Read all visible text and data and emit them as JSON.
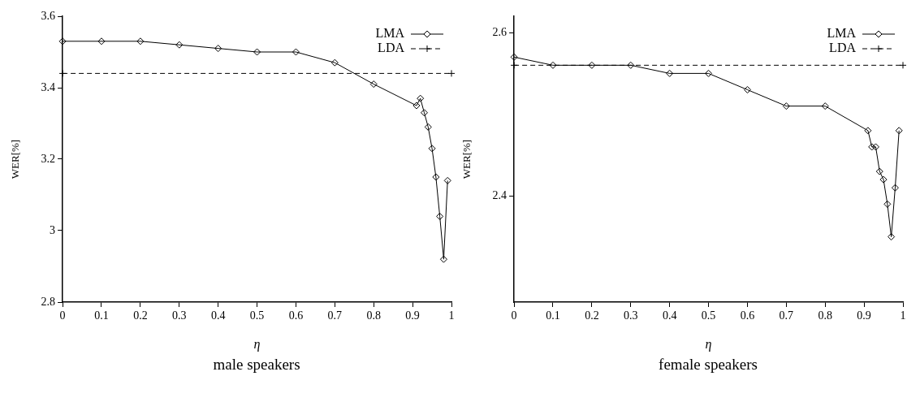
{
  "chart_data": [
    {
      "type": "line",
      "xlabel": "η",
      "ylabel": "WER[%]",
      "annotations": [
        "male speakers"
      ],
      "xlim": [
        0,
        1
      ],
      "xticks": [
        0,
        0.1,
        0.2,
        0.3,
        0.4,
        0.5,
        0.6,
        0.7,
        0.8,
        0.9,
        1
      ],
      "ylim": [
        2.8,
        3.6
      ],
      "yticks": [
        2.8,
        3,
        3.2,
        3.4,
        3.6
      ],
      "grid": false,
      "legend": "top right",
      "series": [
        {
          "name": "LMA",
          "color": "#000000",
          "marker": "diamond",
          "line_style": "solid",
          "x": [
            0,
            0.1,
            0.2,
            0.3,
            0.4,
            0.5,
            0.6,
            0.7,
            0.8,
            0.91,
            0.92,
            0.93,
            0.94,
            0.95,
            0.96,
            0.97,
            0.98,
            0.99
          ],
          "values": [
            3.53,
            3.53,
            3.53,
            3.52,
            3.51,
            3.5,
            3.5,
            3.47,
            3.41,
            3.35,
            3.37,
            3.33,
            3.29,
            3.23,
            3.15,
            3.04,
            2.92,
            3.14
          ]
        },
        {
          "name": "LDA",
          "color": "#000000",
          "marker": "cross",
          "line_style": "dashed",
          "x": [
            0,
            1
          ],
          "values": [
            3.44,
            3.44
          ]
        }
      ]
    },
    {
      "type": "line",
      "xlabel": "η",
      "ylabel": "WER[%]",
      "annotations": [
        "female speakers"
      ],
      "xlim": [
        0,
        1
      ],
      "xticks": [
        0,
        0.1,
        0.2,
        0.3,
        0.4,
        0.5,
        0.6,
        0.7,
        0.8,
        0.9,
        1
      ],
      "ylim": [
        2.27,
        2.62
      ],
      "yticks": [
        2.4,
        2.6
      ],
      "grid": false,
      "legend": "top right",
      "series": [
        {
          "name": "LMA",
          "color": "#000000",
          "marker": "diamond",
          "line_style": "solid",
          "x": [
            0,
            0.1,
            0.2,
            0.3,
            0.4,
            0.5,
            0.6,
            0.7,
            0.8,
            0.91,
            0.92,
            0.93,
            0.94,
            0.95,
            0.96,
            0.97,
            0.98,
            0.99
          ],
          "values": [
            2.57,
            2.56,
            2.56,
            2.56,
            2.55,
            2.55,
            2.53,
            2.51,
            2.51,
            2.48,
            2.46,
            2.46,
            2.43,
            2.42,
            2.39,
            2.35,
            2.41,
            2.48
          ]
        },
        {
          "name": "LDA",
          "color": "#000000",
          "marker": "cross",
          "line_style": "dashed",
          "x": [
            0,
            1
          ],
          "values": [
            2.56,
            2.56
          ]
        }
      ]
    }
  ]
}
